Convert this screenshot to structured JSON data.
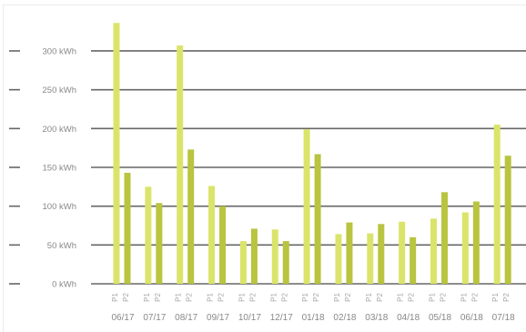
{
  "chart_data": {
    "type": "bar",
    "categories": [
      "06/17",
      "07/17",
      "08/17",
      "09/17",
      "10/17",
      "12/17",
      "01/18",
      "02/18",
      "03/18",
      "04/18",
      "05/18",
      "06/18",
      "07/18"
    ],
    "sub_labels": [
      "P1",
      "P2"
    ],
    "series": [
      {
        "name": "P1",
        "color": "#dbe46a",
        "values": [
          336,
          125,
          307,
          126,
          55,
          70,
          199,
          64,
          65,
          80,
          84,
          92,
          205
        ]
      },
      {
        "name": "P2",
        "color": "#b9c43f",
        "values": [
          143,
          104,
          173,
          100,
          71,
          55,
          167,
          79,
          77,
          60,
          118,
          106,
          165
        ]
      }
    ],
    "y_ticks": [
      "0 kWh",
      "50 kWh",
      "100 kWh",
      "150 kWh",
      "200 kWh",
      "250 kWh",
      "300 kWh"
    ],
    "ylim": [
      0,
      350
    ],
    "grid": true,
    "legend": "none",
    "colors": {
      "grid": "#666666",
      "label": "#888888",
      "sublabel": "#a6a6a6"
    }
  }
}
